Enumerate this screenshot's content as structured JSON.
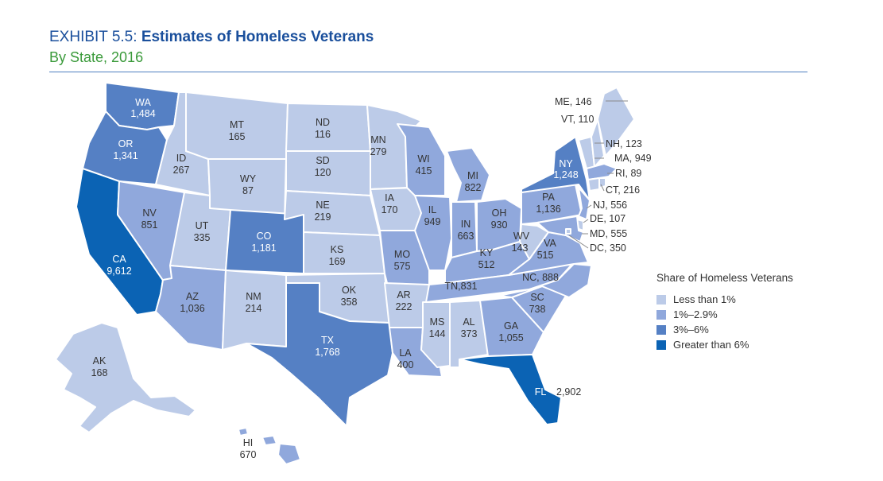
{
  "header": {
    "exhibit": "EXHIBIT 5.5:",
    "title": "Estimates of Homeless Veterans",
    "subtitle": "By State, 2016"
  },
  "colors": {
    "tier1": "#bccbe8",
    "tier2": "#90a8dc",
    "tier3": "#5580c4",
    "tier4": "#0b63b4",
    "title": "#1a4f9c",
    "subtitle": "#3a9a3a",
    "rule": "#4f7fc0"
  },
  "legend": {
    "title": "Share of Homeless Veterans",
    "items": [
      {
        "label": "Less than 1%",
        "tier": 1
      },
      {
        "label": "1%–2.9%",
        "tier": 2
      },
      {
        "label": "3%–6%",
        "tier": 3
      },
      {
        "label": "Greater than 6%",
        "tier": 4
      }
    ]
  },
  "states": {
    "WA": {
      "abbr": "WA",
      "value": "1,484",
      "tier": 3
    },
    "OR": {
      "abbr": "OR",
      "value": "1,341",
      "tier": 3
    },
    "CA": {
      "abbr": "CA",
      "value": "9,612",
      "tier": 4
    },
    "ID": {
      "abbr": "ID",
      "value": "267",
      "tier": 1
    },
    "NV": {
      "abbr": "NV",
      "value": "851",
      "tier": 2
    },
    "MT": {
      "abbr": "MT",
      "value": "165",
      "tier": 1
    },
    "WY": {
      "abbr": "WY",
      "value": "87",
      "tier": 1
    },
    "UT": {
      "abbr": "UT",
      "value": "335",
      "tier": 1
    },
    "AZ": {
      "abbr": "AZ",
      "value": "1,036",
      "tier": 2
    },
    "CO": {
      "abbr": "CO",
      "value": "1,181",
      "tier": 3
    },
    "NM": {
      "abbr": "NM",
      "value": "214",
      "tier": 1
    },
    "ND": {
      "abbr": "ND",
      "value": "116",
      "tier": 1
    },
    "SD": {
      "abbr": "SD",
      "value": "120",
      "tier": 1
    },
    "NE": {
      "abbr": "NE",
      "value": "219",
      "tier": 1
    },
    "KS": {
      "abbr": "KS",
      "value": "169",
      "tier": 1
    },
    "OK": {
      "abbr": "OK",
      "value": "358",
      "tier": 1
    },
    "TX": {
      "abbr": "TX",
      "value": "1,768",
      "tier": 3
    },
    "MN": {
      "abbr": "MN",
      "value": "279",
      "tier": 1
    },
    "IA": {
      "abbr": "IA",
      "value": "170",
      "tier": 1
    },
    "MO": {
      "abbr": "MO",
      "value": "575",
      "tier": 2
    },
    "AR": {
      "abbr": "AR",
      "value": "222",
      "tier": 1
    },
    "LA": {
      "abbr": "LA",
      "value": "400",
      "tier": 2
    },
    "WI": {
      "abbr": "WI",
      "value": "415",
      "tier": 2
    },
    "IL": {
      "abbr": "IL",
      "value": "949",
      "tier": 2
    },
    "MI": {
      "abbr": "MI",
      "value": "822",
      "tier": 2
    },
    "IN": {
      "abbr": "IN",
      "value": "663",
      "tier": 2
    },
    "OH": {
      "abbr": "OH",
      "value": "930",
      "tier": 2
    },
    "KY": {
      "abbr": "KY",
      "value": "512",
      "tier": 2
    },
    "TN": {
      "abbr": "TN",
      "value": "TN,831",
      "tier": 2
    },
    "MS": {
      "abbr": "MS",
      "value": "144",
      "tier": 1
    },
    "AL": {
      "abbr": "AL",
      "value": "373",
      "tier": 1
    },
    "GA": {
      "abbr": "GA",
      "value": "1,055",
      "tier": 2
    },
    "FL": {
      "abbr": "FL",
      "value": "2,902",
      "tier": 4
    },
    "SC": {
      "abbr": "SC",
      "value": "738",
      "tier": 2
    },
    "NC": {
      "abbr": "NC",
      "value": "NC, 888",
      "tier": 2
    },
    "VA": {
      "abbr": "VA",
      "value": "515",
      "tier": 2
    },
    "WV": {
      "abbr": "WV",
      "value": "143",
      "tier": 1
    },
    "PA": {
      "abbr": "PA",
      "value": "1,136",
      "tier": 2
    },
    "NY": {
      "abbr": "NY",
      "value": "1,248",
      "tier": 3
    },
    "NJ": {
      "abbr": "NJ",
      "value": "NJ, 556",
      "tier": 2
    },
    "DE": {
      "abbr": "DE",
      "value": "DE, 107",
      "tier": 1
    },
    "MD": {
      "abbr": "MD",
      "value": "MD, 555",
      "tier": 2
    },
    "DC": {
      "abbr": "DC",
      "value": "DC, 350",
      "tier": 1
    },
    "CT": {
      "abbr": "CT",
      "value": "CT, 216",
      "tier": 1
    },
    "RI": {
      "abbr": "RI",
      "value": "RI, 89",
      "tier": 1
    },
    "MA": {
      "abbr": "MA",
      "value": "MA, 949",
      "tier": 2
    },
    "NH": {
      "abbr": "NH",
      "value": "NH, 123",
      "tier": 1
    },
    "VT": {
      "abbr": "VT",
      "value": "VT, 110",
      "tier": 1
    },
    "ME": {
      "abbr": "ME",
      "value": "ME, 146",
      "tier": 1
    },
    "AK": {
      "abbr": "AK",
      "value": "168",
      "tier": 1
    },
    "HI": {
      "abbr": "HI",
      "value": "670",
      "tier": 2
    }
  }
}
